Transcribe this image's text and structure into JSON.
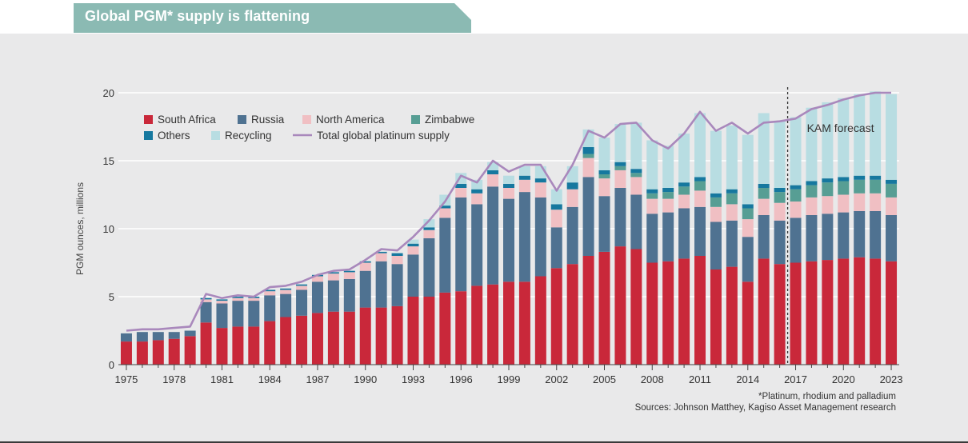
{
  "header": {
    "title": "Global PGM* supply is flattening"
  },
  "footnote": {
    "definition": "*Platinum, rhodium and palladium",
    "sources": "Sources: Johnson Matthey, Kagiso Asset Management research"
  },
  "colors": {
    "south_africa": "#c9283a",
    "russia": "#4f7291",
    "north_america": "#f0bfc3",
    "zimbabwe": "#579e94",
    "others": "#16789f",
    "recycling": "#b8dde2",
    "total_line": "#a988bc",
    "title_band": "#8bbab3",
    "panel": "#e9e9ea"
  },
  "chart_data": {
    "type": "bar",
    "stacked": true,
    "title": "Global PGM* supply is flattening",
    "ylabel": "PGM ounces, millions",
    "xlabel": "",
    "ylim": [
      0,
      20
    ],
    "yticks": [
      0,
      5,
      10,
      15,
      20
    ],
    "grid": true,
    "legend_position": "top-left",
    "annotation": {
      "label": "KAM forecast",
      "from_year": 2017
    },
    "categories": [
      1975,
      1976,
      1977,
      1978,
      1979,
      1980,
      1981,
      1982,
      1983,
      1984,
      1985,
      1986,
      1987,
      1988,
      1989,
      1990,
      1991,
      1992,
      1993,
      1994,
      1995,
      1996,
      1997,
      1998,
      1999,
      2000,
      2001,
      2002,
      2003,
      2004,
      2005,
      2006,
      2007,
      2008,
      2009,
      2010,
      2011,
      2012,
      2013,
      2014,
      2015,
      2016,
      2017,
      2018,
      2019,
      2020,
      2021,
      2022,
      2023
    ],
    "xtick_labels": [
      "1975",
      "1978",
      "1981",
      "1984",
      "1987",
      "1990",
      "1993",
      "1996",
      "1999",
      "2002",
      "2005",
      "2008",
      "2011",
      "2014",
      "2017",
      "2020",
      "2023"
    ],
    "series": [
      {
        "name": "South Africa",
        "color": "#c9283a",
        "values": [
          1.7,
          1.7,
          1.8,
          1.9,
          2.1,
          3.1,
          2.7,
          2.8,
          2.8,
          3.2,
          3.5,
          3.6,
          3.8,
          3.9,
          3.9,
          4.2,
          4.2,
          4.3,
          5.0,
          5.0,
          5.3,
          5.4,
          5.8,
          5.9,
          6.1,
          6.1,
          6.5,
          7.1,
          7.4,
          8.0,
          8.3,
          8.7,
          8.5,
          7.5,
          7.6,
          7.8,
          8.0,
          7.0,
          7.2,
          6.1,
          7.8,
          7.4,
          7.5,
          7.6,
          7.7,
          7.8,
          7.9,
          7.8,
          7.6
        ]
      },
      {
        "name": "Russia",
        "color": "#4f7291",
        "values": [
          0.6,
          0.7,
          0.6,
          0.5,
          0.4,
          1.5,
          1.8,
          1.9,
          1.9,
          1.9,
          1.7,
          1.9,
          2.3,
          2.3,
          2.4,
          2.7,
          3.4,
          3.1,
          3.1,
          4.3,
          5.5,
          6.9,
          6.0,
          7.2,
          6.1,
          6.6,
          5.8,
          3.0,
          4.2,
          5.8,
          4.1,
          4.3,
          4.0,
          3.6,
          3.6,
          3.7,
          3.6,
          3.5,
          3.4,
          3.3,
          3.2,
          3.2,
          3.3,
          3.4,
          3.4,
          3.4,
          3.4,
          3.5,
          3.4
        ]
      },
      {
        "name": "North America",
        "color": "#f0bfc3",
        "values": [
          0,
          0,
          0,
          0,
          0,
          0.2,
          0.2,
          0.2,
          0.2,
          0.3,
          0.3,
          0.3,
          0.4,
          0.5,
          0.5,
          0.6,
          0.6,
          0.6,
          0.6,
          0.6,
          0.7,
          0.7,
          0.8,
          0.9,
          0.8,
          0.9,
          1.1,
          1.3,
          1.3,
          1.4,
          1.3,
          1.3,
          1.3,
          1.1,
          1.0,
          1.0,
          1.2,
          1.1,
          1.2,
          1.3,
          1.2,
          1.3,
          1.2,
          1.3,
          1.3,
          1.3,
          1.3,
          1.3,
          1.3
        ]
      },
      {
        "name": "Zimbabwe",
        "color": "#579e94",
        "values": [
          0,
          0,
          0,
          0,
          0,
          0,
          0,
          0,
          0,
          0,
          0,
          0,
          0,
          0,
          0,
          0,
          0,
          0,
          0,
          0,
          0,
          0,
          0,
          0,
          0,
          0,
          0,
          0,
          0,
          0.3,
          0.3,
          0.3,
          0.3,
          0.4,
          0.5,
          0.6,
          0.7,
          0.7,
          0.8,
          0.8,
          0.8,
          0.8,
          0.9,
          0.9,
          1.0,
          1.0,
          1.0,
          1.0,
          1.0
        ]
      },
      {
        "name": "Others",
        "color": "#16789f",
        "values": [
          0,
          0,
          0,
          0,
          0,
          0.1,
          0.1,
          0.1,
          0.1,
          0.1,
          0.1,
          0.1,
          0.1,
          0.1,
          0.1,
          0.1,
          0.1,
          0.2,
          0.2,
          0.2,
          0.2,
          0.3,
          0.3,
          0.3,
          0.3,
          0.3,
          0.3,
          0.4,
          0.5,
          0.5,
          0.3,
          0.3,
          0.3,
          0.3,
          0.3,
          0.3,
          0.3,
          0.3,
          0.3,
          0.3,
          0.3,
          0.3,
          0.3,
          0.3,
          0.3,
          0.3,
          0.3,
          0.3,
          0.3
        ]
      },
      {
        "name": "Recycling",
        "color": "#b8dde2",
        "values": [
          0,
          0,
          0,
          0,
          0,
          0,
          0,
          0,
          0,
          0,
          0,
          0,
          0,
          0,
          0,
          0,
          0,
          0,
          0.3,
          0.6,
          0.8,
          0.8,
          0.7,
          0.6,
          0.6,
          0.7,
          0.9,
          1.1,
          1.2,
          1.3,
          2.4,
          2.8,
          3.4,
          3.6,
          3.1,
          3.6,
          4.7,
          4.6,
          4.7,
          5.1,
          5.2,
          4.9,
          5.0,
          5.4,
          5.6,
          5.8,
          6.0,
          6.2,
          6.3
        ]
      }
    ],
    "total_line": {
      "name": "Total global platinum supply",
      "color": "#a988bc",
      "values": [
        2.5,
        2.6,
        2.6,
        2.7,
        2.8,
        5.2,
        4.9,
        5.1,
        5.0,
        5.7,
        5.8,
        6.1,
        6.6,
        6.9,
        7.0,
        7.7,
        8.5,
        8.4,
        9.4,
        10.6,
        12.0,
        13.9,
        13.4,
        15.0,
        14.2,
        14.7,
        14.7,
        12.8,
        14.7,
        17.2,
        16.7,
        17.7,
        17.8,
        16.5,
        15.9,
        17.0,
        18.6,
        17.2,
        17.8,
        17.0,
        17.8,
        17.9,
        18.1,
        18.8,
        19.1,
        19.5,
        19.8,
        20.0,
        20.0
      ]
    }
  }
}
